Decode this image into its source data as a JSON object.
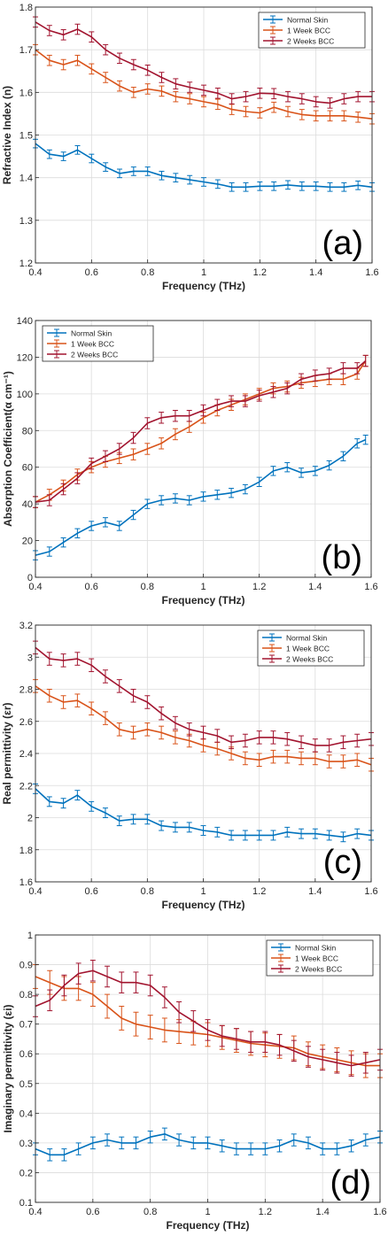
{
  "chart_data": [
    {
      "type": "line",
      "panel_label": "(a)",
      "xlabel": "Frequency (THz)",
      "ylabel": "Refractive Index (n)",
      "xlim": [
        0.4,
        1.6
      ],
      "ylim": [
        1.2,
        1.8
      ],
      "xticks": [
        0.4,
        0.6,
        0.8,
        1,
        1.2,
        1.4,
        1.6
      ],
      "yticks": [
        1.2,
        1.3,
        1.4,
        1.5,
        1.6,
        1.7,
        1.8
      ],
      "grid": true,
      "legend": "top-right",
      "x": [
        0.4,
        0.45,
        0.5,
        0.55,
        0.6,
        0.65,
        0.7,
        0.75,
        0.8,
        0.85,
        0.9,
        0.95,
        1.0,
        1.05,
        1.1,
        1.15,
        1.2,
        1.25,
        1.3,
        1.35,
        1.4,
        1.45,
        1.5,
        1.55,
        1.6
      ],
      "series": [
        {
          "name": "Normal Skin",
          "color": "#0072BD",
          "values": [
            1.48,
            1.455,
            1.45,
            1.465,
            1.445,
            1.425,
            1.41,
            1.415,
            1.415,
            1.405,
            1.4,
            1.395,
            1.39,
            1.385,
            1.378,
            1.378,
            1.38,
            1.38,
            1.383,
            1.38,
            1.38,
            1.378,
            1.378,
            1.382,
            1.378
          ],
          "err": 0.01
        },
        {
          "name": "1 Week BCC",
          "color": "#D95319",
          "values": [
            1.7,
            1.675,
            1.665,
            1.675,
            1.655,
            1.635,
            1.615,
            1.6,
            1.608,
            1.603,
            1.59,
            1.585,
            1.578,
            1.572,
            1.56,
            1.555,
            1.552,
            1.565,
            1.555,
            1.548,
            1.545,
            1.545,
            1.545,
            1.542,
            1.538
          ],
          "err": 0.012
        },
        {
          "name": "2 Weeks BCC",
          "color": "#A2142F",
          "values": [
            1.765,
            1.745,
            1.735,
            1.748,
            1.73,
            1.7,
            1.68,
            1.665,
            1.652,
            1.635,
            1.62,
            1.612,
            1.605,
            1.598,
            1.585,
            1.59,
            1.598,
            1.597,
            1.59,
            1.585,
            1.578,
            1.575,
            1.585,
            1.59,
            1.59
          ],
          "err": 0.012
        }
      ]
    },
    {
      "type": "line",
      "panel_label": "(b)",
      "xlabel": "Frequency (THz)",
      "ylabel": "Absorption Coefficient(α cm⁻¹)",
      "xlim": [
        0.4,
        1.6
      ],
      "ylim": [
        0,
        140
      ],
      "xticks": [
        0.4,
        0.6,
        0.8,
        1,
        1.2,
        1.4,
        1.6
      ],
      "yticks": [
        0,
        20,
        40,
        60,
        80,
        100,
        120,
        140
      ],
      "grid": true,
      "legend": "top-left",
      "x": [
        0.4,
        0.45,
        0.5,
        0.55,
        0.6,
        0.65,
        0.7,
        0.75,
        0.8,
        0.85,
        0.9,
        0.95,
        1.0,
        1.05,
        1.1,
        1.15,
        1.2,
        1.25,
        1.3,
        1.35,
        1.4,
        1.45,
        1.5,
        1.55,
        1.58
      ],
      "series": [
        {
          "name": "Normal Skin",
          "color": "#0072BD",
          "values": [
            12,
            14,
            19,
            24,
            28,
            30,
            28,
            34,
            40,
            42,
            43,
            42,
            44,
            45,
            46,
            48,
            52,
            58,
            60,
            57,
            58,
            61,
            66,
            73,
            75
          ],
          "err": 2.5
        },
        {
          "name": "1 Week BCC",
          "color": "#D95319",
          "values": [
            41,
            45,
            50,
            56,
            60,
            63,
            65,
            67,
            70,
            73,
            78,
            82,
            87,
            91,
            94,
            97,
            100,
            103,
            104,
            106,
            107,
            108,
            108,
            111,
            118
          ],
          "err": 3
        },
        {
          "name": "2 Weeks BCC",
          "color": "#A2142F",
          "values": [
            41,
            42,
            48,
            54,
            62,
            66,
            70,
            76,
            84,
            87,
            88,
            88,
            91,
            94,
            96,
            96,
            99,
            101,
            103,
            108,
            110,
            111,
            114,
            114,
            118
          ],
          "err": 3
        }
      ]
    },
    {
      "type": "line",
      "panel_label": "(c)",
      "xlabel": "Frequency (THz)",
      "ylabel": "Real permittivity (εr)",
      "xlim": [
        0.4,
        1.6
      ],
      "ylim": [
        1.6,
        3.2
      ],
      "xticks": [
        0.4,
        0.6,
        0.8,
        1,
        1.2,
        1.4,
        1.6
      ],
      "yticks": [
        1.6,
        1.8,
        2,
        2.2,
        2.4,
        2.6,
        2.8,
        3,
        3.2
      ],
      "grid": true,
      "legend": "top-right",
      "x": [
        0.4,
        0.45,
        0.5,
        0.55,
        0.6,
        0.65,
        0.7,
        0.75,
        0.8,
        0.85,
        0.9,
        0.95,
        1.0,
        1.05,
        1.1,
        1.15,
        1.2,
        1.25,
        1.3,
        1.35,
        1.4,
        1.45,
        1.5,
        1.55,
        1.6
      ],
      "series": [
        {
          "name": "Normal Skin",
          "color": "#0072BD",
          "values": [
            2.18,
            2.1,
            2.09,
            2.14,
            2.07,
            2.03,
            1.98,
            1.99,
            1.99,
            1.95,
            1.94,
            1.94,
            1.92,
            1.91,
            1.89,
            1.89,
            1.89,
            1.89,
            1.91,
            1.9,
            1.9,
            1.89,
            1.88,
            1.9,
            1.89
          ],
          "err": 0.03
        },
        {
          "name": "1 Week BCC",
          "color": "#D95319",
          "values": [
            2.82,
            2.76,
            2.72,
            2.73,
            2.68,
            2.62,
            2.55,
            2.53,
            2.55,
            2.53,
            2.5,
            2.48,
            2.45,
            2.43,
            2.4,
            2.37,
            2.36,
            2.38,
            2.38,
            2.37,
            2.37,
            2.35,
            2.35,
            2.36,
            2.33
          ],
          "err": 0.04
        },
        {
          "name": "2 Weeks BCC",
          "color": "#A2142F",
          "values": [
            3.06,
            2.99,
            2.98,
            2.99,
            2.95,
            2.88,
            2.82,
            2.76,
            2.72,
            2.65,
            2.59,
            2.55,
            2.53,
            2.51,
            2.47,
            2.48,
            2.5,
            2.5,
            2.49,
            2.47,
            2.45,
            2.45,
            2.47,
            2.48,
            2.49
          ],
          "err": 0.04
        }
      ]
    },
    {
      "type": "line",
      "panel_label": "(d)",
      "xlabel": "Frequency (THz)",
      "ylabel": "Imaginary permittivity (εi)",
      "xlim": [
        0.4,
        1.6
      ],
      "ylim": [
        0.1,
        1
      ],
      "xticks": [
        0.4,
        0.6,
        0.8,
        1,
        1.2,
        1.4,
        1.6
      ],
      "yticks": [
        0.1,
        0.2,
        0.3,
        0.4,
        0.5,
        0.6,
        0.7,
        0.8,
        0.9,
        1
      ],
      "grid": true,
      "legend": "top-right",
      "x": [
        0.4,
        0.45,
        0.5,
        0.55,
        0.6,
        0.65,
        0.7,
        0.75,
        0.8,
        0.85,
        0.9,
        0.95,
        1.0,
        1.05,
        1.1,
        1.15,
        1.2,
        1.25,
        1.3,
        1.35,
        1.4,
        1.45,
        1.5,
        1.55,
        1.6
      ],
      "series": [
        {
          "name": "Normal Skin",
          "color": "#0072BD",
          "values": [
            0.28,
            0.26,
            0.26,
            0.28,
            0.3,
            0.31,
            0.3,
            0.3,
            0.32,
            0.33,
            0.31,
            0.3,
            0.3,
            0.29,
            0.28,
            0.28,
            0.28,
            0.29,
            0.31,
            0.3,
            0.28,
            0.28,
            0.29,
            0.31,
            0.32
          ],
          "err": 0.02
        },
        {
          "name": "1 Week BCC",
          "color": "#D95319",
          "values": [
            0.86,
            0.84,
            0.82,
            0.82,
            0.8,
            0.76,
            0.72,
            0.7,
            0.69,
            0.68,
            0.675,
            0.67,
            0.665,
            0.655,
            0.645,
            0.635,
            0.63,
            0.625,
            0.62,
            0.6,
            0.59,
            0.58,
            0.57,
            0.56,
            0.56
          ],
          "err": 0.04
        },
        {
          "name": "2 Weeks BCC",
          "color": "#A2142F",
          "values": [
            0.76,
            0.78,
            0.83,
            0.87,
            0.88,
            0.86,
            0.84,
            0.84,
            0.83,
            0.79,
            0.74,
            0.71,
            0.68,
            0.66,
            0.65,
            0.64,
            0.64,
            0.63,
            0.61,
            0.59,
            0.58,
            0.57,
            0.56,
            0.57,
            0.58
          ],
          "err": 0.035
        }
      ]
    }
  ]
}
